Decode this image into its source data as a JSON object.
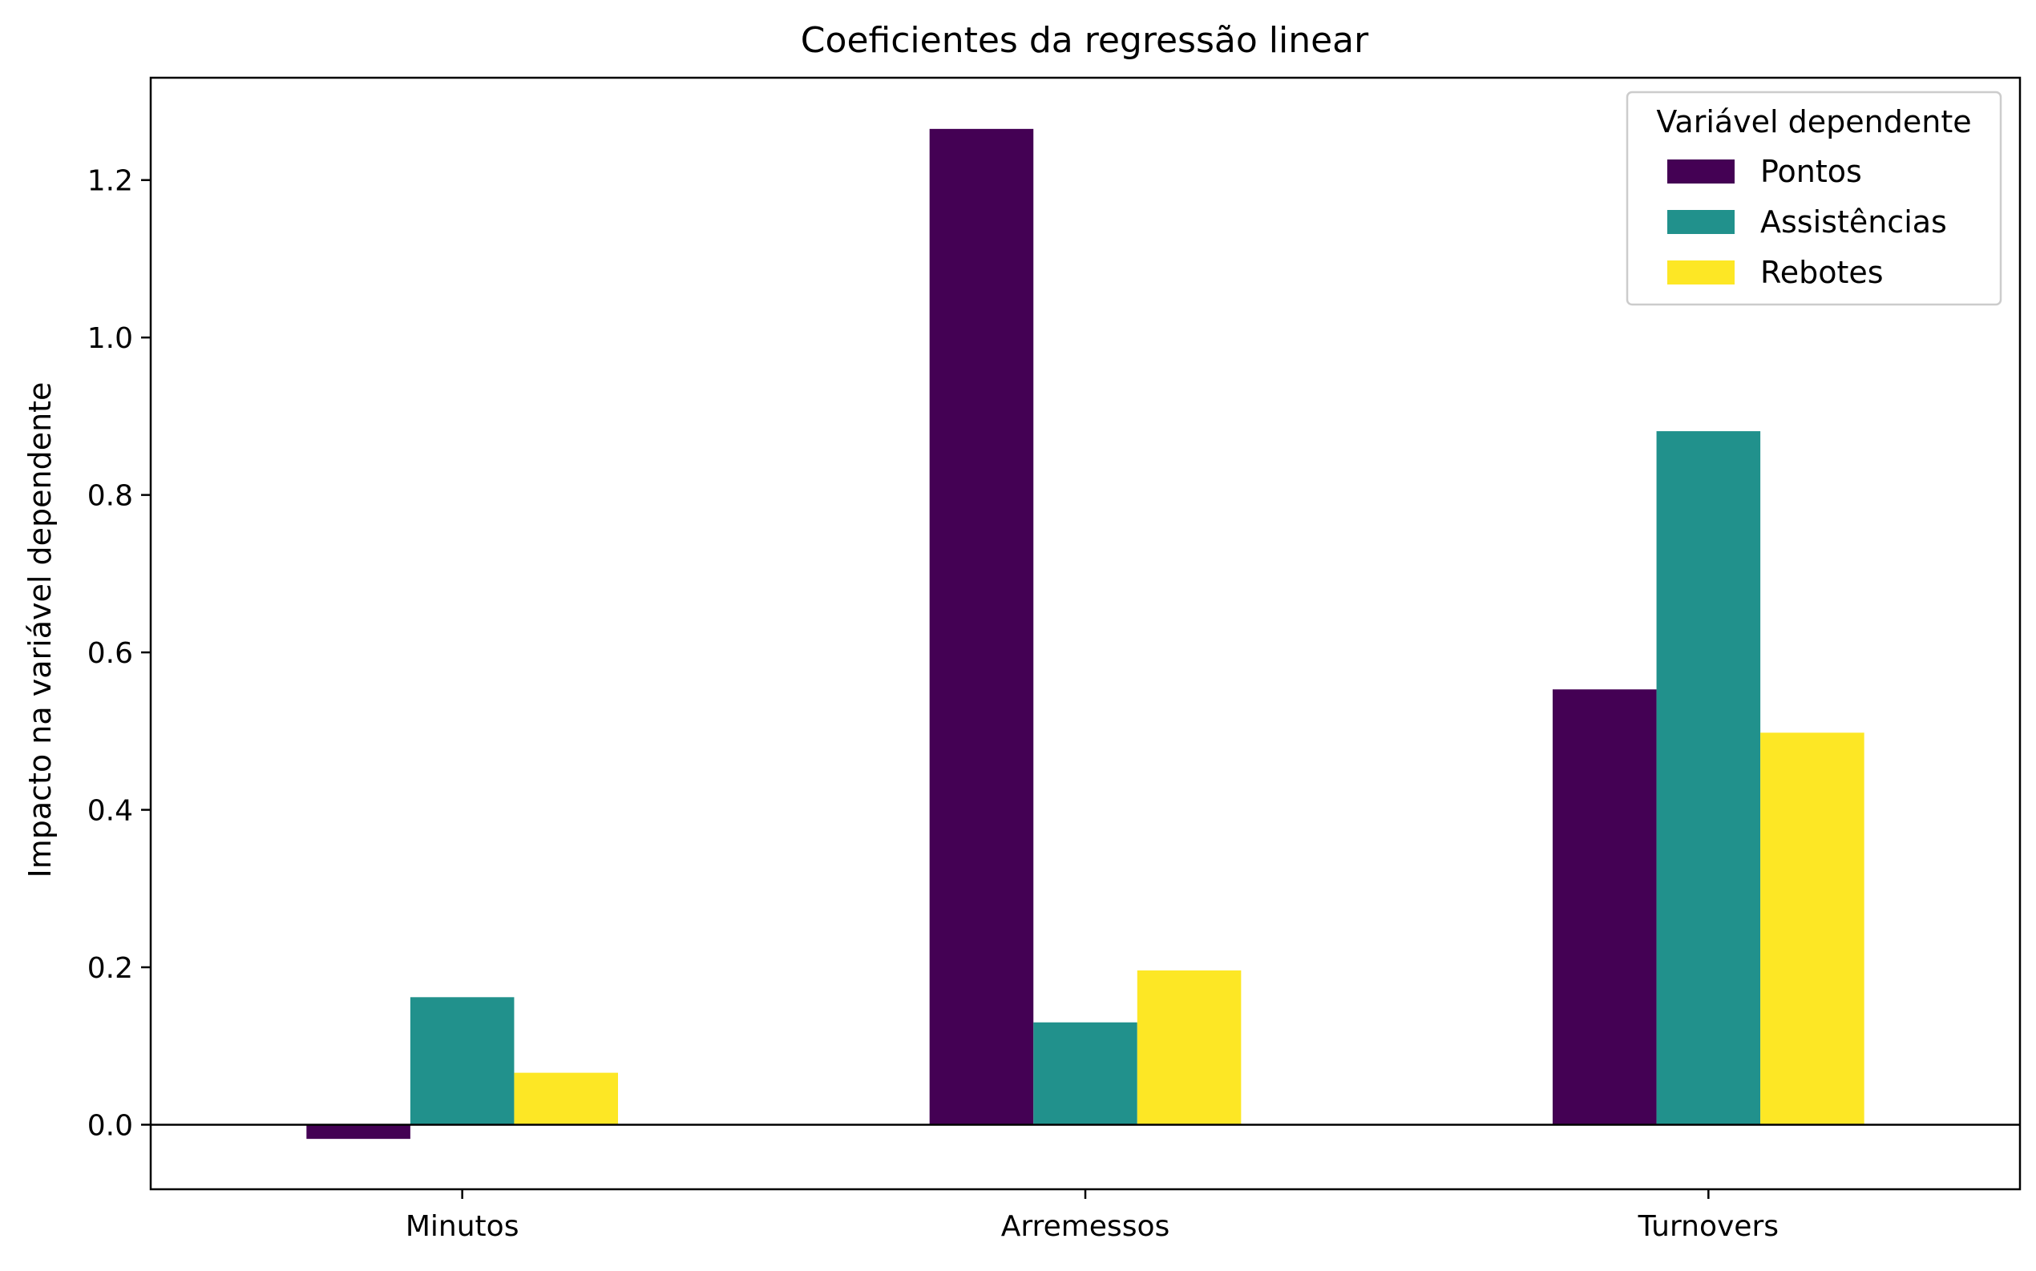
{
  "chart_data": {
    "type": "bar",
    "title": "Coeficientes da regressão linear",
    "xlabel": "",
    "ylabel": "Impacto na variável dependente",
    "categories": [
      "Minutos",
      "Arremessos",
      "Turnovers"
    ],
    "series": [
      {
        "name": "Pontos",
        "color": "#440154",
        "values": [
          -0.018,
          1.265,
          0.553
        ]
      },
      {
        "name": "Assistências",
        "color": "#21918c",
        "values": [
          0.162,
          0.13,
          0.881
        ]
      },
      {
        "name": "Rebotes",
        "color": "#fde725",
        "values": [
          0.066,
          0.196,
          0.498
        ]
      }
    ],
    "ylim": [
      -0.082,
      1.33
    ],
    "yticks": [
      0.0,
      0.2,
      0.4,
      0.6,
      0.8,
      1.0,
      1.2
    ],
    "ytick_labels": [
      "0.0",
      "0.2",
      "0.4",
      "0.6",
      "0.8",
      "1.0",
      "1.2"
    ],
    "zero_line": true,
    "grid": false,
    "legend": {
      "title": "Variável dependente",
      "position": "top-right"
    }
  }
}
